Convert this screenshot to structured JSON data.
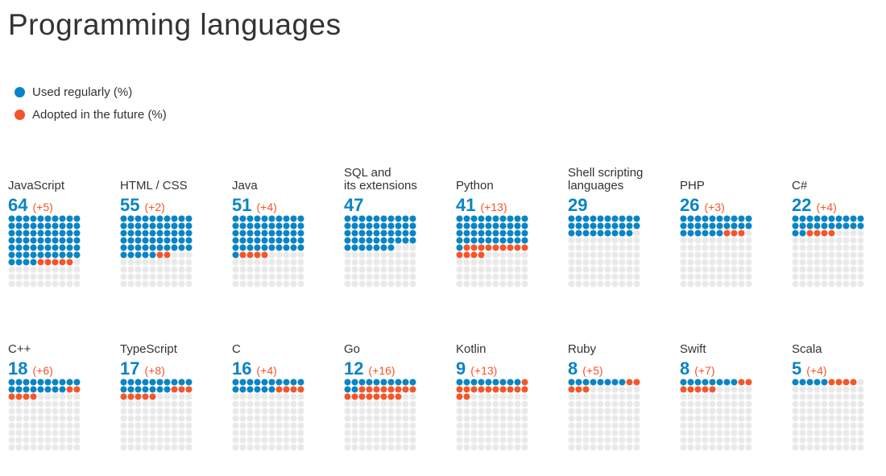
{
  "title": "Programming languages",
  "colors": {
    "used": "#0a84c4",
    "future": "#f4552a",
    "empty": "#e9e9e9"
  },
  "legend": [
    {
      "label": "Used regularly (%)",
      "color": "#0a84c4"
    },
    {
      "label": "Adopted in the future (%)",
      "color": "#f4552a"
    }
  ],
  "chart_data": {
    "type": "waffle",
    "grid": "10x10 dots per language (100 = 100%)",
    "series": [
      {
        "name": "Used regularly (%)"
      },
      {
        "name": "Adopted in the future (%)"
      }
    ],
    "items": [
      {
        "name": "JavaScript",
        "used": 64,
        "future": 5,
        "used_label": "64",
        "future_label": "(+5)"
      },
      {
        "name": "HTML / CSS",
        "used": 55,
        "future": 2,
        "used_label": "55",
        "future_label": "(+2)"
      },
      {
        "name": "Java",
        "used": 51,
        "future": 4,
        "used_label": "51",
        "future_label": "(+4)"
      },
      {
        "name": "SQL and\nits extensions",
        "used": 47,
        "future": 0,
        "used_label": "47",
        "future_label": ""
      },
      {
        "name": "Python",
        "used": 41,
        "future": 13,
        "used_label": "41",
        "future_label": "(+13)"
      },
      {
        "name": "Shell scripting\nlanguages",
        "used": 29,
        "future": 0,
        "used_label": "29",
        "future_label": ""
      },
      {
        "name": "PHP",
        "used": 26,
        "future": 3,
        "used_label": "26",
        "future_label": "(+3)"
      },
      {
        "name": "C#",
        "used": 22,
        "future": 4,
        "used_label": "22",
        "future_label": "(+4)"
      },
      {
        "name": "C++",
        "used": 18,
        "future": 6,
        "used_label": "18",
        "future_label": "(+6)"
      },
      {
        "name": "TypeScript",
        "used": 17,
        "future": 8,
        "used_label": "17",
        "future_label": "(+8)"
      },
      {
        "name": "C",
        "used": 16,
        "future": 4,
        "used_label": "16",
        "future_label": "(+4)"
      },
      {
        "name": "Go",
        "used": 12,
        "future": 16,
        "used_label": "12",
        "future_label": "(+16)"
      },
      {
        "name": "Kotlin",
        "used": 9,
        "future": 13,
        "used_label": "9",
        "future_label": "(+13)"
      },
      {
        "name": "Ruby",
        "used": 8,
        "future": 5,
        "used_label": "8",
        "future_label": "(+5)"
      },
      {
        "name": "Swift",
        "used": 8,
        "future": 7,
        "used_label": "8",
        "future_label": "(+7)"
      },
      {
        "name": "Scala",
        "used": 5,
        "future": 4,
        "used_label": "5",
        "future_label": "(+4)"
      }
    ]
  }
}
